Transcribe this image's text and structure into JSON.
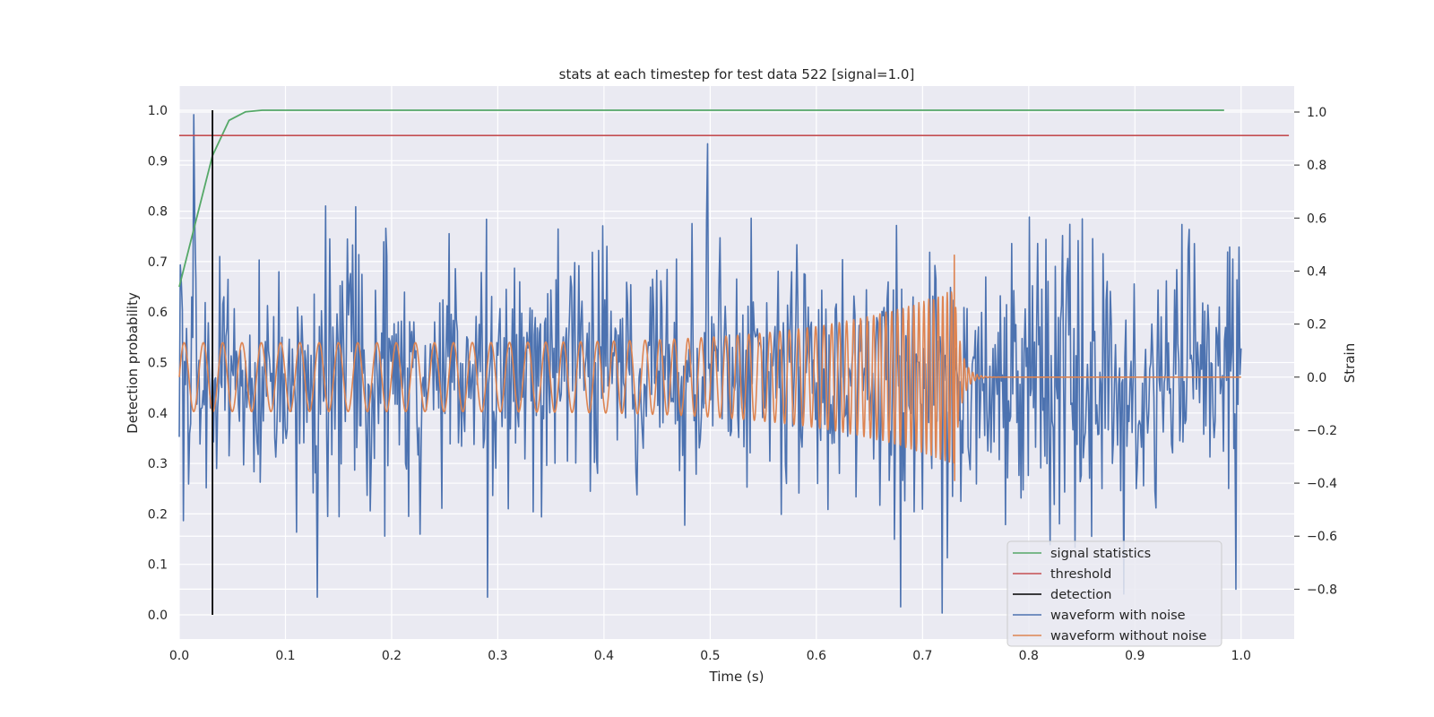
{
  "chart_data": {
    "type": "line",
    "title": "stats at each timestep for test data 522 [signal=1.0]",
    "xlabel": "Time (s)",
    "ylabel": "Detection probability",
    "y2label": "Strain",
    "xlim": [
      0.0,
      1.05
    ],
    "ylim": [
      -0.048,
      1.048
    ],
    "y2lim": [
      -0.988,
      1.098
    ],
    "x_ticks": [
      "0.0",
      "0.1",
      "0.2",
      "0.3",
      "0.4",
      "0.5",
      "0.6",
      "0.7",
      "0.8",
      "0.9",
      "1.0"
    ],
    "y_ticks": [
      "0.0",
      "0.1",
      "0.2",
      "0.3",
      "0.4",
      "0.5",
      "0.6",
      "0.7",
      "0.8",
      "0.9",
      "1.0"
    ],
    "y2_ticks": [
      "−0.8",
      "−0.6",
      "−0.4",
      "−0.2",
      "0.0",
      "0.2",
      "0.4",
      "0.6",
      "0.8",
      "1.0"
    ],
    "grid": true,
    "legend_position": "bottom-right",
    "series": [
      {
        "name": "signal statistics",
        "axis": "left",
        "color": "#55a868",
        "x": [
          0.0,
          0.0156,
          0.0313,
          0.0469,
          0.0625,
          0.0781,
          0.1,
          0.2,
          0.3,
          0.4,
          0.5,
          0.6,
          0.7,
          0.8,
          0.9,
          0.984
        ],
        "y": [
          0.65,
          0.78,
          0.91,
          0.98,
          0.997,
          1.0,
          1.0,
          1.0,
          1.0,
          1.0,
          1.0,
          1.0,
          1.0,
          1.0,
          1.0,
          1.0
        ]
      },
      {
        "name": "threshold",
        "axis": "left",
        "color": "#c44e52",
        "x": [
          0.0,
          1.045
        ],
        "y": [
          0.95,
          0.95
        ]
      },
      {
        "name": "detection",
        "axis": "left",
        "color": "#000000",
        "x": [
          0.0313,
          0.0313
        ],
        "y": [
          0.0,
          1.0
        ]
      },
      {
        "name": "waveform with noise",
        "axis": "right",
        "color": "#4c72b0",
        "style": "gaussian noise, std about 0.25 strain, about 1024 samples from 0.0 to 1.0 s",
        "peaks": [
          {
            "x": 0.014,
            "y": 0.99
          },
          {
            "x": 0.498,
            "y": 0.88
          },
          {
            "x": 0.13,
            "y": -0.83
          },
          {
            "x": 0.29,
            "y": -0.83
          },
          {
            "x": 0.718,
            "y": -0.89
          },
          {
            "x": 0.995,
            "y": -0.8
          }
        ]
      },
      {
        "name": "waveform without noise",
        "axis": "right",
        "color": "#dd8452",
        "style": "chirp: amplitude about 0.13 rising to about 0.33 at 0.73 s, frequency rising from about 55 Hz to about 250 Hz, ringdown by 0.76 s, then 0.0 until 1.0 s",
        "merger_time": 0.73,
        "peak": {
          "x": 0.73,
          "y": 0.46
        },
        "trough": {
          "x": 0.73,
          "y": -0.39
        }
      }
    ]
  }
}
